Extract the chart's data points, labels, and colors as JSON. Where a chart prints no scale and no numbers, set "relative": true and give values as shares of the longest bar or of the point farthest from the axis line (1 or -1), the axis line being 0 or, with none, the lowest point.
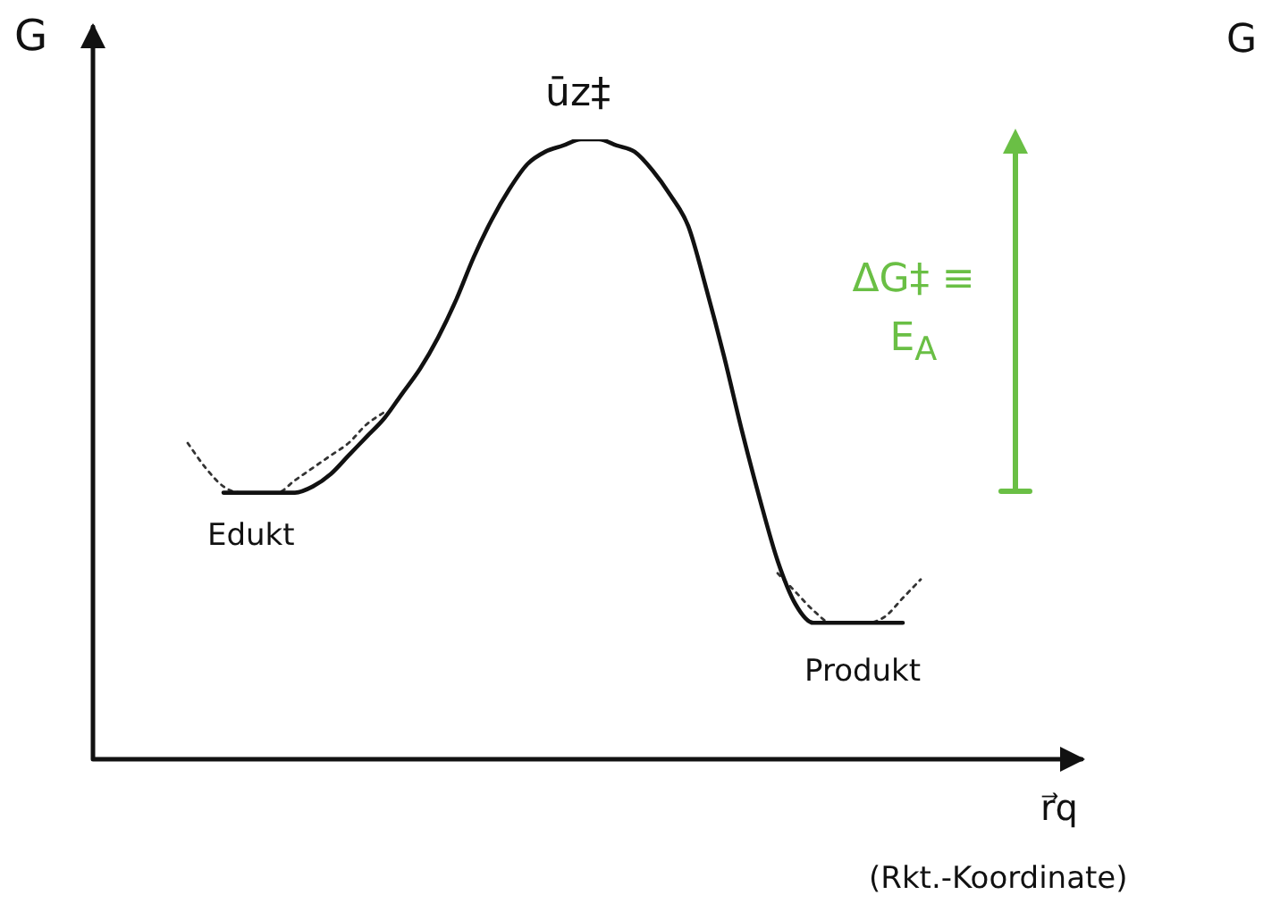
{
  "chart_data": {
    "type": "line",
    "relative": true,
    "xlabel": "r⃗q",
    "ylabel": "G",
    "legend": false,
    "grid": false,
    "tick_labels": false,
    "categories": [
      null,
      null,
      null,
      null,
      null,
      null,
      null,
      null,
      null,
      null,
      null,
      null,
      null,
      null,
      null,
      null,
      null,
      null,
      null,
      null,
      null,
      null,
      null,
      null,
      null,
      null,
      null,
      null,
      null,
      null,
      null,
      null,
      null,
      null,
      null,
      null,
      null,
      null,
      null,
      null,
      null,
      null,
      null,
      null,
      null,
      null,
      null,
      null,
      null,
      null,
      null,
      null,
      null,
      null,
      null,
      null
    ],
    "series": [
      {
        "color": "#111111",
        "line_style": "solid",
        "values": [
          null,
          null,
          null,
          null,
          null,
          null,
          null,
          0.43,
          0.43,
          0.43,
          0.43,
          0.43,
          0.44,
          0.46,
          0.49,
          0.52,
          0.55,
          0.59,
          0.63,
          0.68,
          0.74,
          0.81,
          0.87,
          0.92,
          0.96,
          0.98,
          0.99,
          1,
          1,
          0.99,
          0.98,
          0.95,
          0.91,
          0.86,
          0.76,
          0.65,
          0.53,
          0.42,
          0.32,
          0.25,
          0.22,
          0.22,
          0.22,
          0.22,
          0.22,
          0.22,
          null,
          null,
          null,
          null,
          null,
          null,
          null,
          null,
          null,
          null
        ]
      },
      {
        "color": "#333333",
        "line_style": "dotted",
        "values": [
          null,
          null,
          null,
          null,
          null,
          0.51,
          0.47,
          0.44,
          0.43,
          0.43,
          0.43,
          0.45,
          0.47,
          0.49,
          0.51,
          0.54,
          0.56,
          null,
          null,
          null,
          null,
          null,
          null,
          null,
          null,
          null,
          null,
          null,
          null,
          null,
          null,
          null,
          null,
          null,
          null,
          null,
          null,
          null,
          null,
          null,
          null,
          null,
          null,
          null,
          null,
          null,
          null,
          null,
          null,
          null,
          null,
          null,
          null,
          null,
          null,
          null
        ]
      },
      {
        "color": "#333333",
        "line_style": "dotted",
        "values": [
          null,
          null,
          null,
          null,
          null,
          null,
          null,
          null,
          null,
          null,
          null,
          null,
          null,
          null,
          null,
          null,
          null,
          null,
          null,
          null,
          null,
          null,
          null,
          null,
          null,
          null,
          null,
          null,
          null,
          null,
          null,
          null,
          null,
          null,
          null,
          null,
          null,
          null,
          0.3,
          0.27,
          0.24,
          0.22,
          0.22,
          0.22,
          0.23,
          0.26,
          0.29,
          null,
          null,
          null,
          null,
          null,
          null,
          null,
          null,
          null
        ]
      }
    ],
    "annotations": [
      "ūz‡",
      "Edukt",
      "Produkt",
      "ΔG‡ ≡ E$_{A}$",
      "G",
      "(Rkt.-Koordinate)"
    ]
  }
}
